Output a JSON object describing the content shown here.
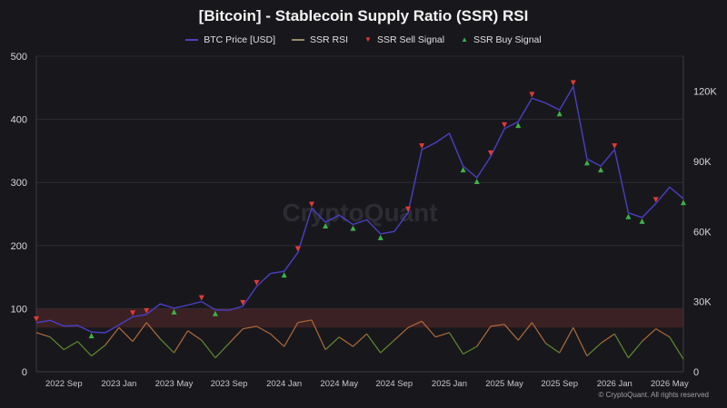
{
  "chart_data": {
    "type": "line",
    "title": "[Bitcoin] - Stablecoin Supply Ratio (SSR) RSI",
    "watermark": "CryptoQuant",
    "copyright": "© CryptoQuant. All rights reserved",
    "legend_position": "top-center",
    "grid": true,
    "y_left": {
      "ticks": [
        "500",
        "400",
        "300",
        "200",
        "100",
        "0"
      ],
      "range": [
        0,
        500
      ]
    },
    "y_right": {
      "ticks": [
        "120K",
        "90K",
        "60K",
        "30K",
        "0"
      ],
      "range": [
        0,
        135000
      ]
    },
    "x_axis": {
      "ticks": [
        "2022 Sep",
        "2023 Jan",
        "2023 May",
        "2023 Sep",
        "2024 Jan",
        "2024 May",
        "2024 Sep",
        "2025 Jan",
        "2025 May",
        "2025 Sep",
        "2026 Jan",
        "2026 May"
      ]
    },
    "band": {
      "from": 70,
      "to": 100,
      "color": "#5a2a2a"
    },
    "series": [
      {
        "name": "BTC Price [USD]",
        "axis": "right",
        "color": "#4a3fc4",
        "points": [
          [
            "2022-07",
            21000
          ],
          [
            "2022-08",
            22000
          ],
          [
            "2022-09",
            19500
          ],
          [
            "2022-10",
            19800
          ],
          [
            "2022-11",
            17000
          ],
          [
            "2022-12",
            16700
          ],
          [
            "2023-01",
            20000
          ],
          [
            "2023-02",
            23500
          ],
          [
            "2023-03",
            24500
          ],
          [
            "2023-04",
            29000
          ],
          [
            "2023-05",
            27200
          ],
          [
            "2023-06",
            28500
          ],
          [
            "2023-07",
            30000
          ],
          [
            "2023-08",
            26500
          ],
          [
            "2023-09",
            26300
          ],
          [
            "2023-10",
            28000
          ],
          [
            "2023-11",
            36500
          ],
          [
            "2023-12",
            42000
          ],
          [
            "2024-01",
            43000
          ],
          [
            "2024-02",
            51000
          ],
          [
            "2024-03",
            70000
          ],
          [
            "2024-04",
            64000
          ],
          [
            "2024-05",
            67000
          ],
          [
            "2024-06",
            63000
          ],
          [
            "2024-07",
            65000
          ],
          [
            "2024-08",
            59000
          ],
          [
            "2024-09",
            60000
          ],
          [
            "2024-10",
            68000
          ],
          [
            "2024-11",
            95000
          ],
          [
            "2024-12",
            98000
          ],
          [
            "2025-01",
            102000
          ],
          [
            "2025-02",
            88000
          ],
          [
            "2025-03",
            83000
          ],
          [
            "2025-04",
            92000
          ],
          [
            "2025-05",
            104000
          ],
          [
            "2025-06",
            107000
          ],
          [
            "2025-07",
            117000
          ],
          [
            "2025-08",
            115000
          ],
          [
            "2025-09",
            112000
          ],
          [
            "2025-10",
            122000
          ],
          [
            "2025-11",
            91000
          ],
          [
            "2025-12",
            88000
          ],
          [
            "2026-01",
            95000
          ],
          [
            "2026-02",
            68000
          ],
          [
            "2026-03",
            66000
          ],
          [
            "2026-04",
            72000
          ],
          [
            "2026-05",
            79000
          ],
          [
            "2026-06",
            74000
          ]
        ]
      },
      {
        "name": "SSR RSI",
        "axis": "left",
        "color": "#b06a3a",
        "color_low": "#5f8a30",
        "points": [
          [
            "2022-07",
            62
          ],
          [
            "2022-08",
            55
          ],
          [
            "2022-09",
            35
          ],
          [
            "2022-10",
            48
          ],
          [
            "2022-11",
            25
          ],
          [
            "2022-12",
            42
          ],
          [
            "2023-01",
            70
          ],
          [
            "2023-02",
            48
          ],
          [
            "2023-03",
            78
          ],
          [
            "2023-04",
            52
          ],
          [
            "2023-05",
            30
          ],
          [
            "2023-06",
            65
          ],
          [
            "2023-07",
            50
          ],
          [
            "2023-08",
            22
          ],
          [
            "2023-09",
            45
          ],
          [
            "2023-10",
            68
          ],
          [
            "2023-11",
            72
          ],
          [
            "2023-12",
            60
          ],
          [
            "2024-01",
            40
          ],
          [
            "2024-02",
            78
          ],
          [
            "2024-03",
            82
          ],
          [
            "2024-04",
            35
          ],
          [
            "2024-05",
            55
          ],
          [
            "2024-06",
            40
          ],
          [
            "2024-07",
            60
          ],
          [
            "2024-08",
            30
          ],
          [
            "2024-09",
            50
          ],
          [
            "2024-10",
            70
          ],
          [
            "2024-11",
            80
          ],
          [
            "2024-12",
            55
          ],
          [
            "2025-01",
            62
          ],
          [
            "2025-02",
            28
          ],
          [
            "2025-03",
            40
          ],
          [
            "2025-04",
            72
          ],
          [
            "2025-05",
            75
          ],
          [
            "2025-06",
            50
          ],
          [
            "2025-07",
            78
          ],
          [
            "2025-08",
            45
          ],
          [
            "2025-09",
            30
          ],
          [
            "2025-10",
            70
          ],
          [
            "2025-11",
            25
          ],
          [
            "2025-12",
            45
          ],
          [
            "2026-01",
            60
          ],
          [
            "2026-02",
            22
          ],
          [
            "2026-03",
            48
          ],
          [
            "2026-04",
            68
          ],
          [
            "2026-05",
            55
          ],
          [
            "2026-06",
            20
          ]
        ]
      },
      {
        "name": "SSR Sell Signal",
        "axis": "right",
        "color": "#e03a3a",
        "marker": "triangle-down",
        "points": [
          [
            "2022-07",
            21000
          ],
          [
            "2023-02",
            23500
          ],
          [
            "2023-03",
            24500
          ],
          [
            "2023-07",
            30000
          ],
          [
            "2023-10",
            28000
          ],
          [
            "2023-11",
            36500
          ],
          [
            "2024-02",
            51000
          ],
          [
            "2024-03",
            70000
          ],
          [
            "2024-10",
            68000
          ],
          [
            "2024-11",
            95000
          ],
          [
            "2025-04",
            92000
          ],
          [
            "2025-05",
            104000
          ],
          [
            "2025-07",
            117000
          ],
          [
            "2025-10",
            122000
          ],
          [
            "2026-01",
            95000
          ],
          [
            "2026-04",
            72000
          ]
        ]
      },
      {
        "name": "SSR Buy Signal",
        "axis": "right",
        "color": "#3fb04a",
        "marker": "triangle-up",
        "points": [
          [
            "2022-11",
            17000
          ],
          [
            "2023-05",
            27200
          ],
          [
            "2023-08",
            26500
          ],
          [
            "2024-01",
            43000
          ],
          [
            "2024-04",
            64000
          ],
          [
            "2024-06",
            63000
          ],
          [
            "2024-08",
            59000
          ],
          [
            "2025-02",
            88000
          ],
          [
            "2025-03",
            83000
          ],
          [
            "2025-06",
            107000
          ],
          [
            "2025-09",
            112000
          ],
          [
            "2025-11",
            91000
          ],
          [
            "2025-12",
            88000
          ],
          [
            "2026-02",
            68000
          ],
          [
            "2026-03",
            66000
          ],
          [
            "2026-06",
            74000
          ]
        ]
      }
    ]
  }
}
